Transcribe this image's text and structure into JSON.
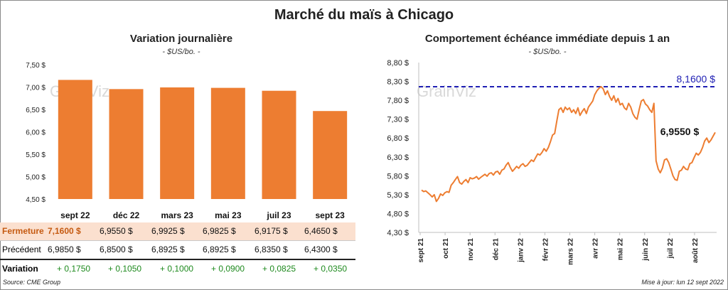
{
  "title": "Marché du maïs à Chicago",
  "watermark": "GrainViz",
  "source": "Source: CME Group",
  "update": "Mise à jour: lun 12 sept 2022",
  "colors": {
    "bar": "#ed7d31",
    "line": "#ed7d31",
    "ref": "#1f1fb4",
    "green": "#1e8a1e",
    "highlight": "#fbe0cf"
  },
  "chart_data": [
    {
      "type": "bar",
      "title": "Variation journalière",
      "units": "- $US/bo. -",
      "categories": [
        "sept 22",
        "déc 22",
        "mars 23",
        "mai 23",
        "juil 23",
        "sept 23"
      ],
      "values": [
        7.16,
        6.955,
        6.9925,
        6.9825,
        6.9175,
        6.465
      ],
      "ylim": [
        4.5,
        7.5
      ],
      "yticks": [
        "4,50 $",
        "5,00 $",
        "5,50 $",
        "6,00 $",
        "6,50 $",
        "7,00 $",
        "7,50 $"
      ]
    },
    {
      "type": "line",
      "title": "Comportement échéance immédiate depuis 1 an",
      "units": "- $US/bo. -",
      "ylim": [
        4.3,
        8.8
      ],
      "yticks": [
        "4,30 $",
        "4,80 $",
        "5,30 $",
        "5,80 $",
        "6,30 $",
        "6,80 $",
        "7,30 $",
        "7,80 $",
        "8,30 $",
        "8,80 $"
      ],
      "xticks": [
        "sept 21",
        "oct 21",
        "nov 21",
        "déc 21",
        "janv 22",
        "févr 22",
        "mars 22",
        "avr 22",
        "mai 22",
        "juin 22",
        "juil 22",
        "août 22"
      ],
      "reference_value": 8.16,
      "reference_label": "8,1600 $",
      "last_value": 6.955,
      "last_label": "6,9550 $",
      "values": [
        5.42,
        5.38,
        5.4,
        5.35,
        5.3,
        5.24,
        5.3,
        5.12,
        5.2,
        5.32,
        5.28,
        5.35,
        5.38,
        5.36,
        5.55,
        5.62,
        5.7,
        5.78,
        5.62,
        5.58,
        5.65,
        5.7,
        5.62,
        5.75,
        5.72,
        5.74,
        5.78,
        5.71,
        5.76,
        5.8,
        5.84,
        5.79,
        5.86,
        5.88,
        5.82,
        5.9,
        5.92,
        5.84,
        5.95,
        5.98,
        6.08,
        6.15,
        6.02,
        5.92,
        5.98,
        6.05,
        6.0,
        6.08,
        6.12,
        6.05,
        6.08,
        6.15,
        6.22,
        6.18,
        6.28,
        6.38,
        6.35,
        6.42,
        6.52,
        6.45,
        6.55,
        6.7,
        6.88,
        6.92,
        7.25,
        7.55,
        7.6,
        7.48,
        7.62,
        7.55,
        7.6,
        7.48,
        7.55,
        7.45,
        7.6,
        7.4,
        7.5,
        7.58,
        7.45,
        7.62,
        7.7,
        7.78,
        7.95,
        8.05,
        8.12,
        8.16,
        8.1,
        7.95,
        8.05,
        7.9,
        7.8,
        7.92,
        7.75,
        7.85,
        7.68,
        7.72,
        7.6,
        7.55,
        7.72,
        7.62,
        7.45,
        7.35,
        7.3,
        7.55,
        7.78,
        7.82,
        7.7,
        7.65,
        7.55,
        7.48,
        7.72,
        6.2,
        5.98,
        5.88,
        6.0,
        6.22,
        6.25,
        6.15,
        5.98,
        5.8,
        5.7,
        5.68,
        5.92,
        5.95,
        6.05,
        5.98,
        5.96,
        6.12,
        6.15,
        6.28,
        6.4,
        6.35,
        6.42,
        6.55,
        6.72,
        6.8,
        6.68,
        6.75,
        6.85,
        6.95
      ]
    }
  ],
  "table": {
    "rows": [
      {
        "label": "Fermeture",
        "cells": [
          "7,1600  $",
          "6,9550  $",
          "6,9925  $",
          "6,9825  $",
          "6,9175  $",
          "6,4650  $"
        ]
      },
      {
        "label": "Précédent",
        "cells": [
          "6,9850  $",
          "6,8500  $",
          "6,8925  $",
          "6,8925  $",
          "6,8350  $",
          "6,4300  $"
        ]
      },
      {
        "label": "Variation",
        "cells": [
          "+ 0,1750",
          "+ 0,1050",
          "+ 0,1000",
          "+ 0,0900",
          "+ 0,0825",
          "+ 0,0350"
        ]
      }
    ]
  }
}
